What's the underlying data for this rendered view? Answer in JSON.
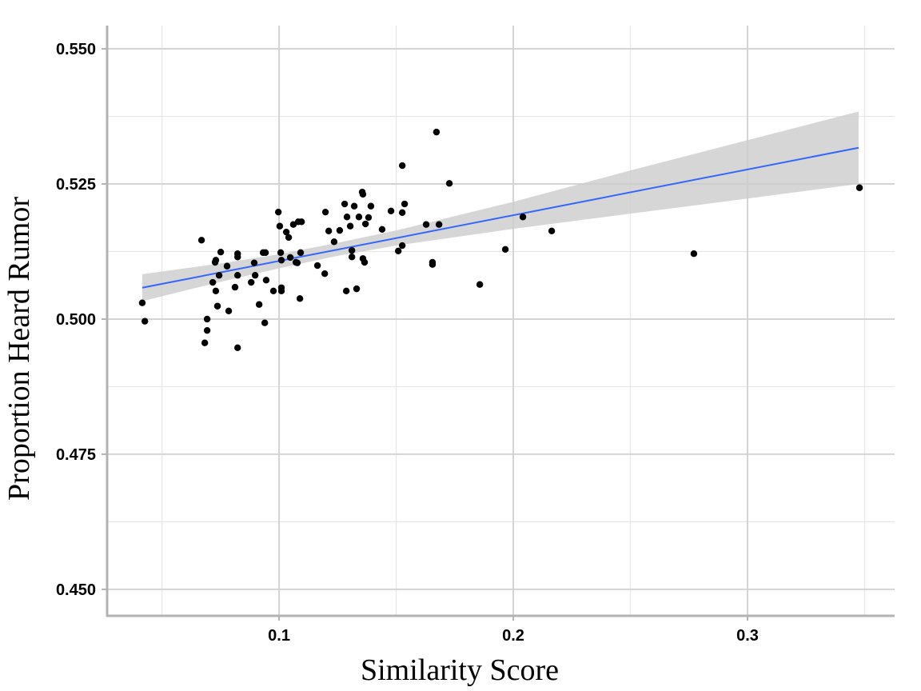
{
  "chart_data": {
    "type": "scatter",
    "x_label": "Similarity Score",
    "y_label": "Proportion Heard Rumor",
    "xlim": [
      0.0266,
      0.3628
    ],
    "ylim": [
      0.4451,
      0.5543
    ],
    "xticks": [
      0.1,
      0.2,
      0.3
    ],
    "yticks": [
      {
        "value": 0.45,
        "label": "0.450"
      },
      {
        "value": 0.475,
        "label": "0.475"
      },
      {
        "value": 0.5,
        "label": "0.500"
      },
      {
        "value": 0.525,
        "label": "0.525"
      },
      {
        "value": 0.55,
        "label": "0.550"
      }
    ],
    "x_minor_grid": [
      0.05,
      0.15,
      0.25,
      0.35
    ],
    "y_minor_grid": [
      0.4625,
      0.4875,
      0.5125,
      0.5375
    ],
    "grid": true,
    "point_color": "#000000",
    "x": [
      0.0416,
      0.0427,
      0.0669,
      0.0693,
      0.0693,
      0.0683,
      0.0717,
      0.0727,
      0.073,
      0.073,
      0.0737,
      0.0744,
      0.0751,
      0.0778,
      0.0785,
      0.0812,
      0.0823,
      0.0823,
      0.0823,
      0.0823,
      0.0881,
      0.0894,
      0.0898,
      0.0915,
      0.0932,
      0.0942,
      0.0939,
      0.0945,
      0.0976,
      0.0997,
      0.1003,
      0.1007,
      0.101,
      0.101,
      0.101,
      0.1031,
      0.1041,
      0.1048,
      0.1061,
      0.1072,
      0.1078,
      0.1082,
      0.1096,
      0.1092,
      0.1089,
      0.1164,
      0.1195,
      0.1198,
      0.1212,
      0.1235,
      0.1259,
      0.128,
      0.1287,
      0.129,
      0.1304,
      0.1311,
      0.1311,
      0.1321,
      0.1331,
      0.1341,
      0.1355,
      0.1358,
      0.1358,
      0.1365,
      0.1369,
      0.1382,
      0.1392,
      0.144,
      0.1478,
      0.1509,
      0.1526,
      0.1526,
      0.1526,
      0.1536,
      0.1628,
      0.1655,
      0.1655,
      0.1672,
      0.1683,
      0.1727,
      0.1857,
      0.1966,
      0.2041,
      0.2164,
      0.2771,
      0.3478
    ],
    "y": [
      0.503,
      0.4996,
      0.5146,
      0.5,
      0.4979,
      0.4956,
      0.5068,
      0.5105,
      0.5109,
      0.5052,
      0.5024,
      0.5081,
      0.5124,
      0.5098,
      0.5015,
      0.5059,
      0.5121,
      0.5115,
      0.5081,
      0.4947,
      0.5068,
      0.5104,
      0.5081,
      0.5027,
      0.5123,
      0.5123,
      0.4993,
      0.5072,
      0.5052,
      0.5198,
      0.5172,
      0.5123,
      0.5109,
      0.5058,
      0.5052,
      0.5161,
      0.5151,
      0.5114,
      0.5175,
      0.5105,
      0.5104,
      0.518,
      0.518,
      0.5123,
      0.5038,
      0.5099,
      0.5084,
      0.5198,
      0.5163,
      0.5143,
      0.5164,
      0.5213,
      0.5052,
      0.5189,
      0.5172,
      0.5127,
      0.5115,
      0.5209,
      0.5056,
      0.5189,
      0.5235,
      0.5231,
      0.5112,
      0.5105,
      0.5176,
      0.5188,
      0.5209,
      0.5166,
      0.52,
      0.5126,
      0.5284,
      0.5197,
      0.5136,
      0.5213,
      0.5175,
      0.5101,
      0.5105,
      0.5346,
      0.5175,
      0.5251,
      0.5064,
      0.5129,
      0.5189,
      0.5163,
      0.5121,
      0.5243
    ],
    "fit": {
      "color": "#3366ff",
      "x": [
        0.0416,
        0.3474
      ],
      "y": [
        0.5058,
        0.5317
      ]
    },
    "confidence_band": {
      "color": "#cccccc",
      "x": [
        0.0416,
        0.075,
        0.1,
        0.125,
        0.15,
        0.2,
        0.25,
        0.3,
        0.3474
      ],
      "lower": [
        0.5033,
        0.5069,
        0.5094,
        0.5117,
        0.5136,
        0.5167,
        0.5195,
        0.5223,
        0.525
      ],
      "upper": [
        0.5083,
        0.5103,
        0.512,
        0.5141,
        0.5164,
        0.5217,
        0.5275,
        0.5331,
        0.5384
      ]
    }
  }
}
